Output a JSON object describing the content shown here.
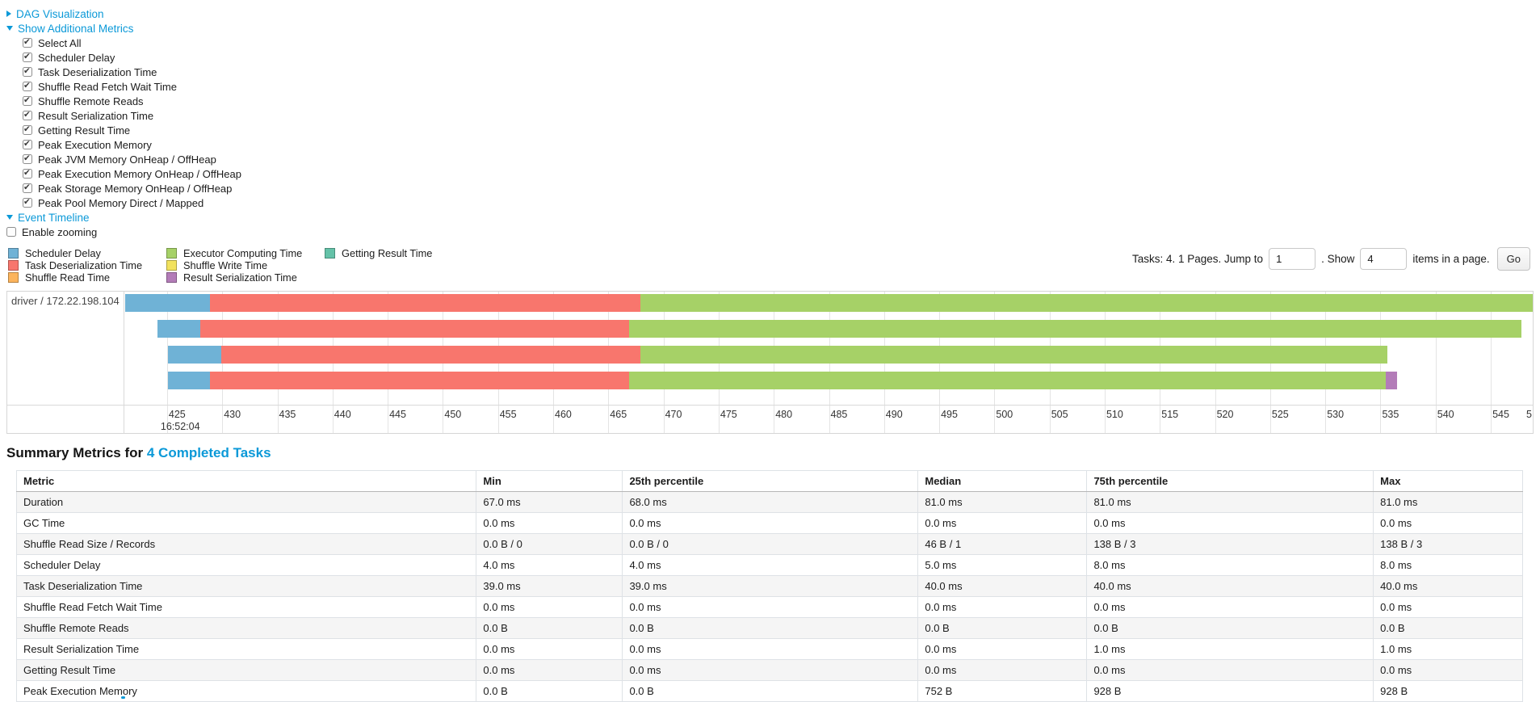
{
  "colors": {
    "link_blue": "#0b99d8"
  },
  "controls": {
    "dag_link": "DAG Visualization",
    "metrics_link": "Show Additional Metrics",
    "timeline_link": "Event Timeline",
    "enable_zooming_label": "Enable zooming",
    "enable_zooming_checked": false,
    "metric_checkboxes": [
      {
        "label": "Select All",
        "checked": true
      },
      {
        "label": "Scheduler Delay",
        "checked": true
      },
      {
        "label": "Task Deserialization Time",
        "checked": true
      },
      {
        "label": "Shuffle Read Fetch Wait Time",
        "checked": true
      },
      {
        "label": "Shuffle Remote Reads",
        "checked": true
      },
      {
        "label": "Result Serialization Time",
        "checked": true
      },
      {
        "label": "Getting Result Time",
        "checked": true
      },
      {
        "label": "Peak Execution Memory",
        "checked": true
      },
      {
        "label": "Peak JVM Memory OnHeap / OffHeap",
        "checked": true
      },
      {
        "label": "Peak Execution Memory OnHeap / OffHeap",
        "checked": true
      },
      {
        "label": "Peak Storage Memory OnHeap / OffHeap",
        "checked": true
      },
      {
        "label": "Peak Pool Memory Direct / Mapped",
        "checked": true
      }
    ]
  },
  "legend": {
    "columns": [
      [
        {
          "label": "Scheduler Delay",
          "color": "#6FB2D6"
        },
        {
          "label": "Task Deserialization Time",
          "color": "#F8766D"
        },
        {
          "label": "Shuffle Read Time",
          "color": "#FCB45C"
        }
      ],
      [
        {
          "label": "Executor Computing Time",
          "color": "#A6D167"
        },
        {
          "label": "Shuffle Write Time",
          "color": "#F2E25D"
        },
        {
          "label": "Result Serialization Time",
          "color": "#B37CB8"
        }
      ],
      [
        {
          "label": "Getting Result Time",
          "color": "#64C2A8"
        }
      ]
    ]
  },
  "pagination": {
    "tasks_text": "Tasks: 4. 1 Pages. Jump to",
    "jump_value": "1",
    "show_text": ". Show",
    "show_value": "4",
    "items_text": "items in a page.",
    "go_label": "Go"
  },
  "chart_data": {
    "type": "bar",
    "orientation": "horizontal-stacked-timeline",
    "group_label": "driver / 172.22.198.104",
    "x_range": [
      421.2,
      548.8
    ],
    "ticks": [
      425,
      430,
      435,
      440,
      445,
      450,
      455,
      460,
      465,
      470,
      475,
      480,
      485,
      490,
      495,
      500,
      505,
      510,
      515,
      520,
      525,
      530,
      535,
      540,
      545
    ],
    "tick_time_label": "16:52:04",
    "partial_right_label": "5",
    "series_colors": {
      "scheduler_delay": "#6FB2D6",
      "task_deserialization_time": "#F8766D",
      "executor_computing_time": "#A6D167",
      "result_serialization_time": "#B37CB8"
    },
    "rows": [
      {
        "segments": [
          {
            "name": "scheduler_delay",
            "start": 421.2,
            "end": 428.9
          },
          {
            "name": "task_deserialization_time",
            "start": 428.9,
            "end": 467.9
          },
          {
            "name": "executor_computing_time",
            "start": 467.9,
            "end": 548.8
          }
        ]
      },
      {
        "segments": [
          {
            "name": "scheduler_delay",
            "start": 424.1,
            "end": 428.0
          },
          {
            "name": "task_deserialization_time",
            "start": 428.0,
            "end": 466.9
          },
          {
            "name": "executor_computing_time",
            "start": 466.9,
            "end": 547.8
          }
        ]
      },
      {
        "segments": [
          {
            "name": "scheduler_delay",
            "start": 425.1,
            "end": 429.9
          },
          {
            "name": "task_deserialization_time",
            "start": 429.9,
            "end": 467.9
          },
          {
            "name": "executor_computing_time",
            "start": 467.9,
            "end": 535.6
          }
        ]
      },
      {
        "segments": [
          {
            "name": "scheduler_delay",
            "start": 425.1,
            "end": 428.9
          },
          {
            "name": "task_deserialization_time",
            "start": 428.9,
            "end": 466.9
          },
          {
            "name": "executor_computing_time",
            "start": 466.9,
            "end": 535.5
          },
          {
            "name": "result_serialization_time",
            "start": 535.5,
            "end": 536.5
          }
        ]
      }
    ],
    "row_tops": [
      3,
      35,
      67,
      99
    ]
  },
  "summary": {
    "title_prefix": "Summary Metrics for",
    "title_link": "4 Completed Tasks",
    "columns": [
      "Metric",
      "Min",
      "25th percentile",
      "Median",
      "75th percentile",
      "Max"
    ],
    "column_widths": [
      "30.5%",
      "9.7%",
      "19.6%",
      "11.2%",
      "19.0%",
      "9.9%"
    ],
    "rows": [
      [
        "Duration",
        "67.0 ms",
        "68.0 ms",
        "81.0 ms",
        "81.0 ms",
        "81.0 ms"
      ],
      [
        "GC Time",
        "0.0 ms",
        "0.0 ms",
        "0.0 ms",
        "0.0 ms",
        "0.0 ms"
      ],
      [
        "Shuffle Read Size / Records",
        "0.0 B / 0",
        "0.0 B / 0",
        "46 B / 1",
        "138 B / 3",
        "138 B / 3"
      ],
      [
        "Scheduler Delay",
        "4.0 ms",
        "4.0 ms",
        "5.0 ms",
        "8.0 ms",
        "8.0 ms"
      ],
      [
        "Task Deserialization Time",
        "39.0 ms",
        "39.0 ms",
        "40.0 ms",
        "40.0 ms",
        "40.0 ms"
      ],
      [
        "Shuffle Read Fetch Wait Time",
        "0.0 ms",
        "0.0 ms",
        "0.0 ms",
        "0.0 ms",
        "0.0 ms"
      ],
      [
        "Shuffle Remote Reads",
        "0.0 B",
        "0.0 B",
        "0.0 B",
        "0.0 B",
        "0.0 B"
      ],
      [
        "Result Serialization Time",
        "0.0 ms",
        "0.0 ms",
        "0.0 ms",
        "1.0 ms",
        "1.0 ms"
      ],
      [
        "Getting Result Time",
        "0.0 ms",
        "0.0 ms",
        "0.0 ms",
        "0.0 ms",
        "0.0 ms"
      ],
      [
        "Peak Execution Memory",
        "0.0 B",
        "0.0 B",
        "752 B",
        "928 B",
        "928 B"
      ]
    ]
  }
}
